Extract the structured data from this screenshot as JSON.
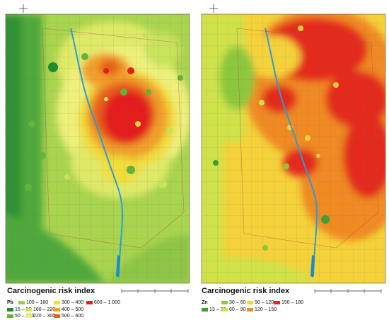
{
  "panels": [
    {
      "element": "Pb",
      "title": "Carcinogenic risk index",
      "legend_columns": [
        [
          {
            "label": "15 – 50",
            "color": "#1f8a2e"
          },
          {
            "label": "50 – 100",
            "color": "#62b53a"
          }
        ],
        [
          {
            "label": "100 – 160",
            "color": "#9fd04a"
          },
          {
            "label": "160 – 220",
            "color": "#c8e35c"
          },
          {
            "label": "220 – 300",
            "color": "#eef07a"
          }
        ],
        [
          {
            "label": "300 – 400",
            "color": "#f2dd3a"
          },
          {
            "label": "400 – 500",
            "color": "#f0a02a"
          },
          {
            "label": "500 – 600",
            "color": "#e8601e"
          }
        ],
        [
          {
            "label": "600 – 1 000",
            "color": "#e41e1a"
          }
        ]
      ]
    },
    {
      "element": "Zn",
      "title": "Carcinogenic risk index",
      "legend_columns": [
        [
          {
            "label": "13 – 30",
            "color": "#3f9e34"
          }
        ],
        [
          {
            "label": "30 – 60",
            "color": "#8cc83c"
          },
          {
            "label": "60 – 90",
            "color": "#cfe34a"
          }
        ],
        [
          {
            "label": "90 – 120",
            "color": "#f5d23a"
          },
          {
            "label": "120 – 150",
            "color": "#f08a22"
          }
        ],
        [
          {
            "label": "150 – 180",
            "color": "#e42a1c"
          }
        ]
      ]
    }
  ]
}
